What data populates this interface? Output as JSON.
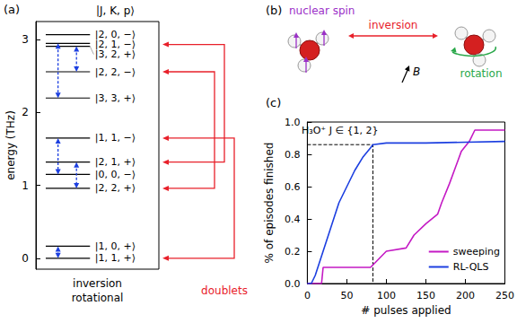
{
  "chart_data": [
    {
      "type": "energy_levels",
      "panel": "(a)",
      "title": "|J, K, p⟩",
      "ylabel": "energy (THz)",
      "ylim": [
        -0.15,
        3.25
      ],
      "yticks": [
        0,
        1,
        2,
        3
      ],
      "levels": [
        {
          "label": "|2, 0, −⟩",
          "value": 3.07
        },
        {
          "label": "|2, 1, −⟩",
          "value": 2.95
        },
        {
          "label": "|3, 2, +⟩",
          "value": 2.91
        },
        {
          "label": "|2, 2, −⟩",
          "value": 2.56
        },
        {
          "label": "|3, 3, +⟩",
          "value": 2.2
        },
        {
          "label": "|1, 1, −⟩",
          "value": 1.65
        },
        {
          "label": "|2, 1, +⟩",
          "value": 1.32
        },
        {
          "label": "|0, 0, −⟩",
          "value": 1.15
        },
        {
          "label": "|2, 2, +⟩",
          "value": 0.96
        },
        {
          "label": "|1, 0, +⟩",
          "value": 0.165
        },
        {
          "label": "|1, 1, +⟩",
          "value": 0
        }
      ],
      "footer": [
        "inversion",
        "rotational"
      ],
      "transitions": {
        "color": "#1c3fe0",
        "line_style": "dashed",
        "pairs": [
          [
            "|2, 1, −⟩",
            "|3, 3, +⟩"
          ],
          [
            "|3, 2, +⟩",
            "|2, 2, −⟩"
          ],
          [
            "|1, 1, −⟩",
            "|0, 0, −⟩"
          ],
          [
            "|2, 1, +⟩",
            "|2, 2, +⟩"
          ],
          [
            "|1, 0, +⟩",
            "|1, 1, +⟩"
          ]
        ]
      },
      "doublets": {
        "label": "doublets",
        "color": "#e8202a",
        "pairs": [
          [
            "|2, 2, −⟩",
            "|2, 2, +⟩"
          ],
          [
            "|2, 1, −⟩",
            "|2, 1, +⟩"
          ],
          [
            "|1, 1, −⟩",
            "|1, 1, +⟩"
          ]
        ]
      }
    },
    {
      "type": "line",
      "panel": "(c)",
      "xlabel": "# pulses applied",
      "ylabel": "% of episodes finished",
      "annotation": "H₃O⁺ J ∈ {1, 2}",
      "xlim": [
        0,
        250
      ],
      "xticks": [
        0,
        50,
        100,
        150,
        200,
        250
      ],
      "ylim": [
        0,
        1
      ],
      "yticks": [
        {
          "value": 0,
          "label": "0.0"
        },
        {
          "value": 0.2,
          "label": "0.2"
        },
        {
          "value": 0.4,
          "label": "0.4"
        },
        {
          "value": 0.6,
          "label": "0.6"
        },
        {
          "value": 0.8,
          "label": "0.8"
        },
        {
          "value": 1,
          "label": "1.0"
        }
      ],
      "legend": "lower right",
      "series": [
        {
          "name": "sweeping",
          "color": "#c41ac4",
          "line_style": "solid",
          "x": [
            0,
            18,
            20,
            80,
            90,
            100,
            125,
            135,
            150,
            165,
            170,
            180,
            195,
            205,
            212,
            250
          ],
          "values": [
            0,
            0,
            0.1,
            0.1,
            0.15,
            0.2,
            0.22,
            0.3,
            0.37,
            0.43,
            0.5,
            0.62,
            0.82,
            0.88,
            0.95,
            0.95
          ]
        },
        {
          "name": "RL-QLS",
          "color": "#1c3fe0",
          "line_style": "solid",
          "x": [
            0,
            5,
            10,
            20,
            30,
            40,
            50,
            60,
            70,
            80,
            83,
            100,
            150,
            200,
            250
          ],
          "values": [
            0,
            0,
            0.05,
            0.2,
            0.35,
            0.5,
            0.6,
            0.7,
            0.78,
            0.84,
            0.86,
            0.87,
            0.87,
            0.875,
            0.88
          ]
        }
      ],
      "guide": {
        "x": 83,
        "y": 0.86,
        "line_style": "dashed"
      }
    }
  ],
  "diagram": {
    "panel": "(b)",
    "spin_label": "nuclear spin",
    "inversion_label": "inversion",
    "rotation_label": "rotation",
    "field_label": "B",
    "spin_color": "#9b30c8",
    "inversion_color": "#e8202a",
    "rotation_color": "#2aa84a"
  }
}
